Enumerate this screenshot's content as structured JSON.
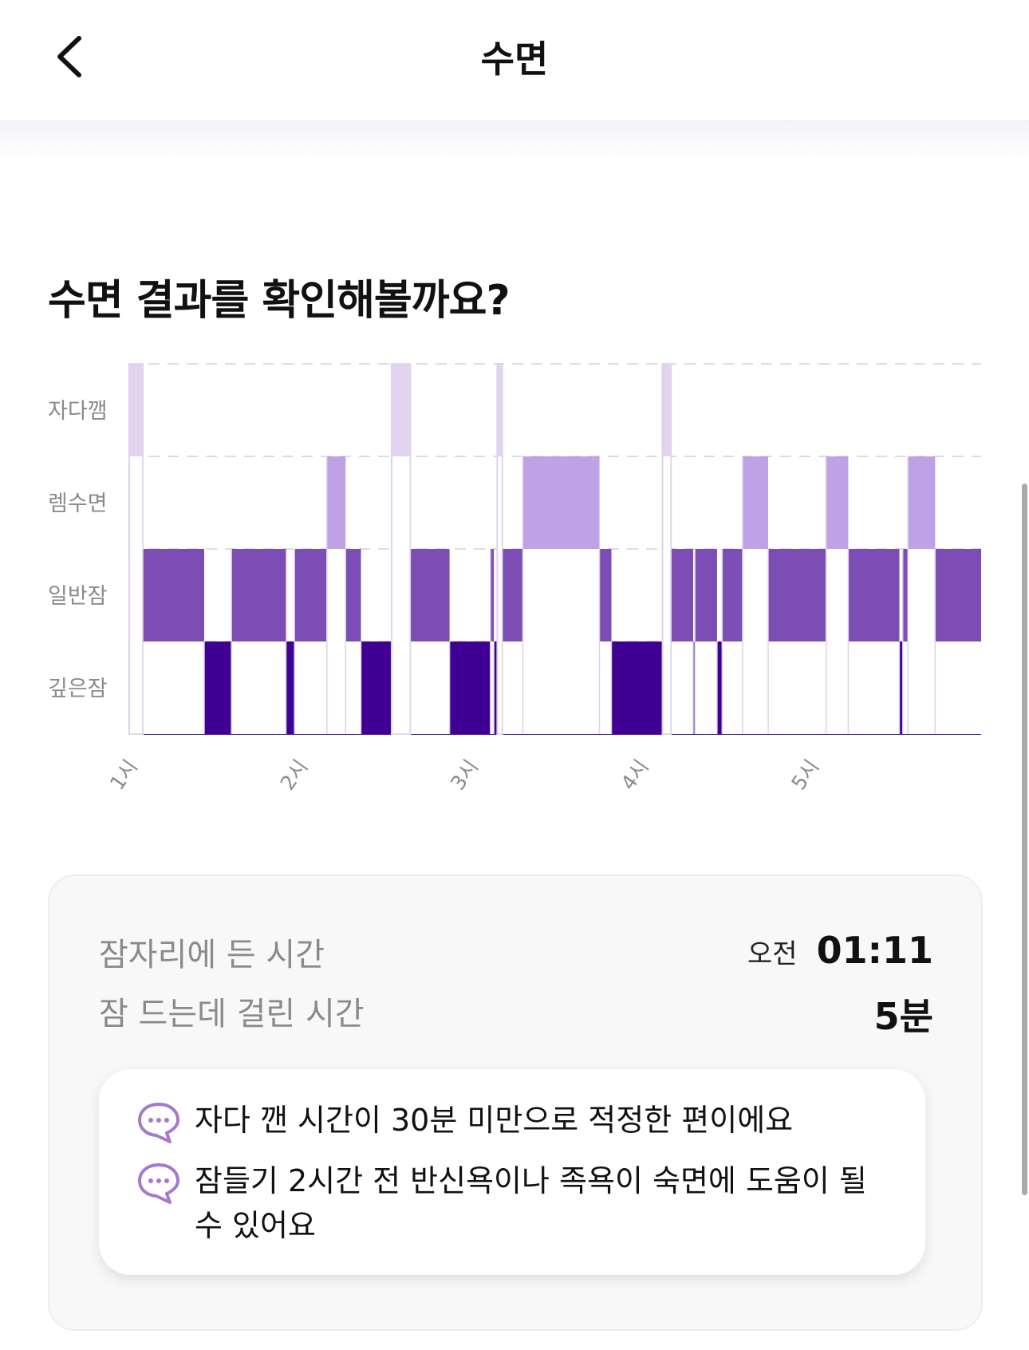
{
  "header": {
    "title": "수면",
    "back_icon": "chevron-left-icon"
  },
  "section_title": "수면 결과를 확인해볼까요?",
  "chart_data": {
    "type": "hypnogram",
    "stages": [
      "자다깸",
      "렘수면",
      "일반잠",
      "깊은잠"
    ],
    "x_ticks": [
      "1시",
      "2시",
      "3시",
      "4시",
      "5시"
    ],
    "x_unit": "hour",
    "xlim": [
      1.0,
      6.0
    ],
    "colors": {
      "자다깸": "#e2d3ef",
      "렘수면": "#bfa1e6",
      "일반잠": "#7b4db5",
      "깊은잠": "#410094"
    },
    "segments": [
      {
        "stage": "자다깸",
        "start": 1.0,
        "end": 1.08
      },
      {
        "stage": "일반잠",
        "start": 1.08,
        "end": 1.44
      },
      {
        "stage": "깊은잠",
        "start": 1.44,
        "end": 1.6
      },
      {
        "stage": "일반잠",
        "start": 1.6,
        "end": 1.92
      },
      {
        "stage": "깊은잠",
        "start": 1.92,
        "end": 1.97
      },
      {
        "stage": "일반잠",
        "start": 1.97,
        "end": 2.16
      },
      {
        "stage": "렘수면",
        "start": 2.16,
        "end": 2.27
      },
      {
        "stage": "일반잠",
        "start": 2.27,
        "end": 2.36
      },
      {
        "stage": "깊은잠",
        "start": 2.36,
        "end": 2.54
      },
      {
        "stage": "자다깸",
        "start": 2.54,
        "end": 2.65
      },
      {
        "stage": "일반잠",
        "start": 2.65,
        "end": 2.88
      },
      {
        "stage": "깊은잠",
        "start": 2.88,
        "end": 3.12
      },
      {
        "stage": "일반잠",
        "start": 3.12,
        "end": 3.14
      },
      {
        "stage": "깊은잠",
        "start": 3.14,
        "end": 3.16
      },
      {
        "stage": "자다깸",
        "start": 3.16,
        "end": 3.19
      },
      {
        "stage": "일반잠",
        "start": 3.19,
        "end": 3.31
      },
      {
        "stage": "렘수면",
        "start": 3.31,
        "end": 3.76
      },
      {
        "stage": "일반잠",
        "start": 3.76,
        "end": 3.83
      },
      {
        "stage": "깊은잠",
        "start": 3.83,
        "end": 4.13
      },
      {
        "stage": "자다깸",
        "start": 4.13,
        "end": 4.18
      },
      {
        "stage": "일반잠",
        "start": 4.18,
        "end": 4.31
      },
      {
        "stage": "깊은잠",
        "start": 4.31,
        "end": 4.32
      },
      {
        "stage": "일반잠",
        "start": 4.32,
        "end": 4.45
      },
      {
        "stage": "깊은잠",
        "start": 4.45,
        "end": 4.48
      },
      {
        "stage": "일반잠",
        "start": 4.48,
        "end": 4.6
      },
      {
        "stage": "렘수면",
        "start": 4.6,
        "end": 4.75
      },
      {
        "stage": "일반잠",
        "start": 4.75,
        "end": 5.09
      },
      {
        "stage": "렘수면",
        "start": 5.09,
        "end": 5.22
      },
      {
        "stage": "일반잠",
        "start": 5.22,
        "end": 5.52
      },
      {
        "stage": "깊은잠",
        "start": 5.52,
        "end": 5.54
      },
      {
        "stage": "일반잠",
        "start": 5.54,
        "end": 5.57
      },
      {
        "stage": "렘수면",
        "start": 5.57,
        "end": 5.73
      },
      {
        "stage": "일반잠",
        "start": 5.73,
        "end": 6.0
      }
    ],
    "grid": true
  },
  "summary": {
    "bedtime_label": "잠자리에 든 시간",
    "bedtime_ampm": "오전",
    "bedtime_value": "01:11",
    "latency_label": "잠 드는데 걸린 시간",
    "latency_value": "5분"
  },
  "tips": [
    {
      "icon": "chat-bubble-icon",
      "text": "자다 깬 시간이 30분 미만으로 적정한 편이에요"
    },
    {
      "icon": "chat-bubble-icon",
      "text": "잠들기 2시간 전 반신욕이나 족욕이 숙면에 도움이 될 수 있어요"
    }
  ]
}
